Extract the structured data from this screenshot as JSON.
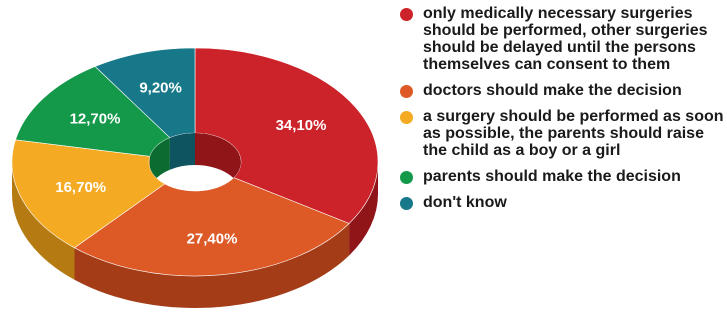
{
  "chart_data": {
    "type": "pie",
    "variant": "3d-donut",
    "legend_position": "right",
    "slices": [
      {
        "label": "only medically necessary surgeries should be performed, other surgeries should be delayed until the persons themselves can consent to them",
        "value": 34.1,
        "value_label": "34,10%",
        "color": "#cc2229",
        "side_color": "#8f1519"
      },
      {
        "label": "doctors should make the decision",
        "value": 27.4,
        "value_label": "27,40%",
        "color": "#dd5a27",
        "side_color": "#a33c17"
      },
      {
        "label": "a surgery should be performed as soon as possible, the parents should raise the child as a boy or a girl",
        "value": 16.7,
        "value_label": "16,70%",
        "color": "#f4aa22",
        "side_color": "#b57b12"
      },
      {
        "label": "parents should make the decision",
        "value": 12.7,
        "value_label": "12,70%",
        "color": "#14994a",
        "side_color": "#0b6b31"
      },
      {
        "label": "don't know",
        "value": 9.2,
        "value_label": "9,20%",
        "color": "#17788a",
        "side_color": "#0e5360"
      }
    ]
  }
}
